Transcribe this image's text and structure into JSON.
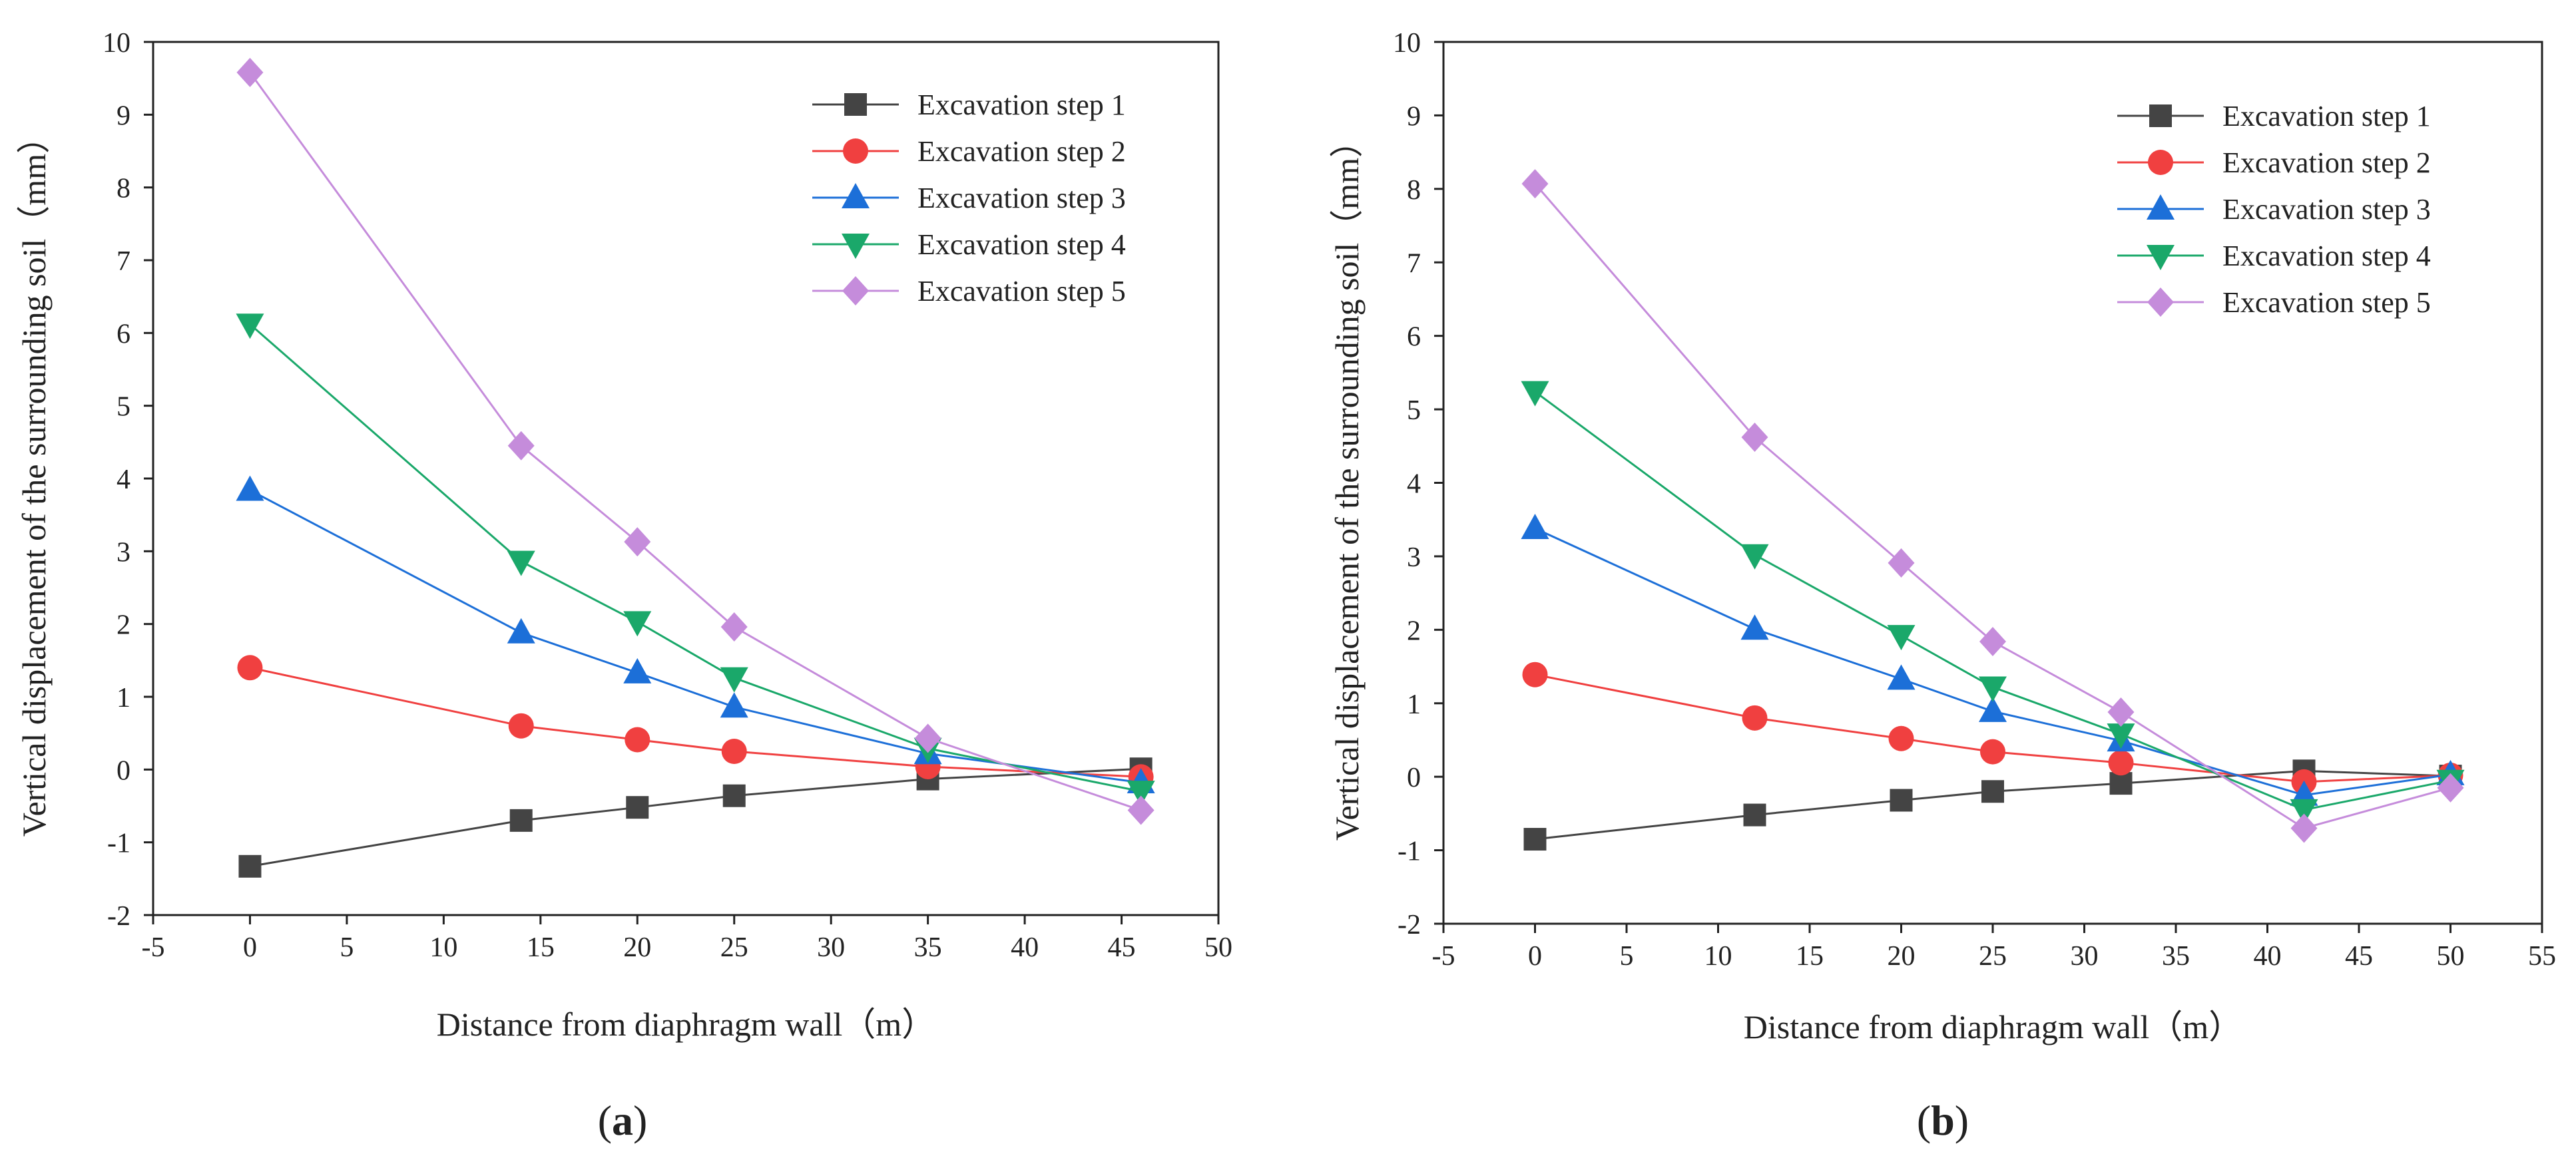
{
  "figure": {
    "charts": [
      {
        "panel": "(a)",
        "panel_letter": "a"
      },
      {
        "panel": "(b)",
        "panel_letter": "b"
      }
    ]
  },
  "chart_data": [
    {
      "type": "line",
      "panel": "(a)",
      "title": "",
      "xlabel": "Distance from diaphragm wall（m）",
      "ylabel": "Vertical displacement of the surrounding soil（mm）",
      "xlim": [
        -5,
        50
      ],
      "ylim": [
        -2,
        10
      ],
      "xticks": [
        -5,
        0,
        5,
        10,
        15,
        20,
        25,
        30,
        35,
        40,
        45,
        50
      ],
      "yticks": [
        -2,
        -1,
        0,
        1,
        2,
        3,
        4,
        5,
        6,
        7,
        8,
        9,
        10
      ],
      "legend_position": "top-right",
      "x": [
        0,
        14,
        20,
        25,
        35,
        46
      ],
      "series": [
        {
          "name": "Excavation step 1",
          "marker": "square",
          "color": "#444444",
          "values": [
            -1.33,
            -0.7,
            -0.52,
            -0.36,
            -0.13,
            0.01
          ]
        },
        {
          "name": "Excavation step 2",
          "marker": "circle",
          "color": "#f04040",
          "values": [
            1.4,
            0.6,
            0.41,
            0.25,
            0.04,
            -0.1
          ]
        },
        {
          "name": "Excavation step 3",
          "marker": "triangle-up",
          "color": "#1c6fd8",
          "values": [
            3.84,
            1.88,
            1.33,
            0.86,
            0.22,
            -0.18
          ]
        },
        {
          "name": "Excavation step 4",
          "marker": "triangle-down",
          "color": "#1aa86a",
          "values": [
            6.12,
            2.86,
            2.03,
            1.26,
            0.29,
            -0.3
          ]
        },
        {
          "name": "Excavation step 5",
          "marker": "diamond",
          "color": "#c58cdb",
          "values": [
            9.58,
            4.45,
            3.13,
            1.96,
            0.43,
            -0.56
          ]
        }
      ]
    },
    {
      "type": "line",
      "panel": "(b)",
      "title": "",
      "xlabel": "Distance from diaphragm wall（m）",
      "ylabel": "Vertical displacement of the surrounding soil（mm）",
      "xlim": [
        -5,
        55
      ],
      "ylim": [
        -2,
        10
      ],
      "xticks": [
        -5,
        0,
        5,
        10,
        15,
        20,
        25,
        30,
        35,
        40,
        45,
        50,
        55
      ],
      "yticks": [
        -2,
        -1,
        0,
        1,
        2,
        3,
        4,
        5,
        6,
        7,
        8,
        9,
        10
      ],
      "legend_position": "top-right",
      "x": [
        0,
        12,
        20,
        25,
        32,
        42,
        50
      ],
      "series": [
        {
          "name": "Excavation step 1",
          "marker": "square",
          "color": "#444444",
          "values": [
            -0.85,
            -0.52,
            -0.32,
            -0.2,
            -0.09,
            0.08,
            0.01
          ]
        },
        {
          "name": "Excavation step 2",
          "marker": "circle",
          "color": "#f04040",
          "values": [
            1.39,
            0.8,
            0.52,
            0.34,
            0.19,
            -0.07,
            0.02
          ]
        },
        {
          "name": "Excavation step 3",
          "marker": "triangle-up",
          "color": "#1c6fd8",
          "values": [
            3.38,
            2.01,
            1.33,
            0.89,
            0.49,
            -0.25,
            0.03
          ]
        },
        {
          "name": "Excavation step 4",
          "marker": "triangle-down",
          "color": "#1aa86a",
          "values": [
            5.24,
            3.02,
            1.92,
            1.22,
            0.58,
            -0.45,
            -0.05
          ]
        },
        {
          "name": "Excavation step 5",
          "marker": "diamond",
          "color": "#c58cdb",
          "values": [
            8.07,
            4.62,
            2.91,
            1.84,
            0.88,
            -0.7,
            -0.15
          ]
        }
      ]
    }
  ]
}
